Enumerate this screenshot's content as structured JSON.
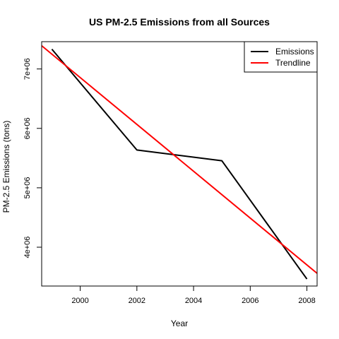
{
  "chart_data": {
    "type": "line",
    "title": "US PM-2.5 Emissions from all Sources",
    "xlabel": "Year",
    "ylabel": "PM-2.5 Emissions (tons)",
    "xlim": [
      1998.64,
      2008.36
    ],
    "ylim": [
      3346520,
      7459400
    ],
    "x_ticks": [
      2000,
      2002,
      2004,
      2006,
      2008
    ],
    "x_tick_labels": [
      "2000",
      "2002",
      "2004",
      "2006",
      "2008"
    ],
    "y_ticks": [
      4000000,
      5000000,
      6000000,
      7000000
    ],
    "y_tick_labels": [
      "4e+06",
      "5e+06",
      "6e+06",
      "7e+06"
    ],
    "grid": false,
    "legend_position": "top-right",
    "series": [
      {
        "name": "Emissions",
        "color": "#000000",
        "x": [
          1999,
          2002,
          2005,
          2008
        ],
        "y": [
          7332967,
          5635780,
          5454703,
          3464206
        ]
      },
      {
        "name": "Trendline",
        "color": "#ff0000",
        "x": [
          1998.64,
          2008.36
        ],
        "y": [
          7391120,
          3560000
        ]
      }
    ]
  }
}
